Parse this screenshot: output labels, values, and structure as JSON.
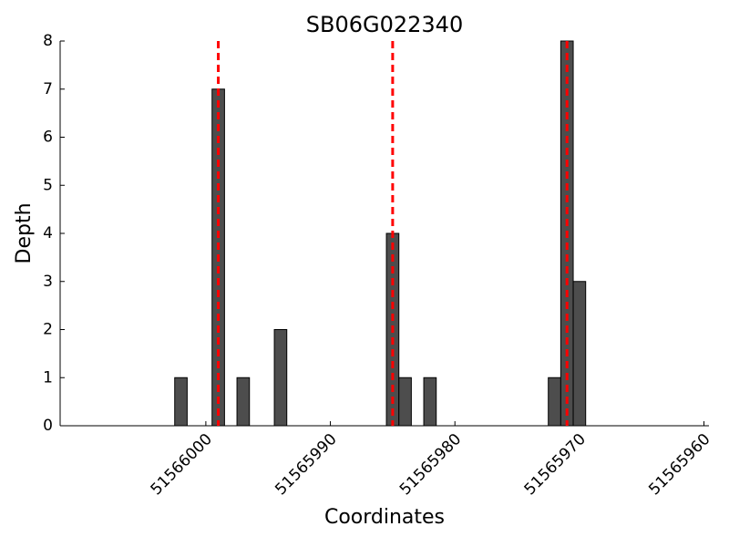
{
  "chart_data": {
    "type": "bar",
    "title": "SB06G022340",
    "x_label": "Coordinates",
    "y_label": "Depth",
    "x": [
      51566002,
      51565999,
      51565997,
      51565994,
      51565985,
      51565984,
      51565982,
      51565972,
      51565971,
      51565970
    ],
    "values": [
      1,
      7,
      1,
      2,
      4,
      1,
      1,
      1,
      8,
      3
    ],
    "color": "#4d4d4d",
    "edge_color": "#000000",
    "xlim": [
      51566011.7,
      51565959.6
    ],
    "xticks": [
      51566000,
      51565990,
      51565980,
      51565970,
      51565960
    ],
    "ylim": [
      0,
      8
    ],
    "yticks": [
      0,
      1,
      2,
      3,
      4,
      5,
      6,
      7,
      8
    ],
    "markers": [
      51565999,
      51565985,
      51565971
    ],
    "marker_color": "#ff0000",
    "grid": false
  }
}
